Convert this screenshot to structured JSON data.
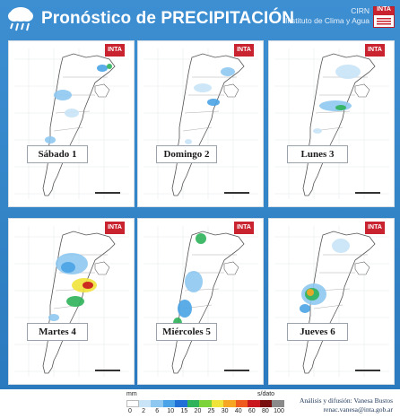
{
  "header": {
    "title_prefix": "Pronóstico de ",
    "title_main": "PRECIPITACIÓN",
    "org_line1": "CIRN",
    "org_line2": "Instituto de Clima y Agua",
    "logo_text": "INTA",
    "icon": "rain-cloud-icon"
  },
  "panels": [
    {
      "day": "Sábado 1",
      "logo": true
    },
    {
      "day": "Domingo 2",
      "logo": true
    },
    {
      "day": "Lunes 3",
      "logo": true
    },
    {
      "day": "Martes 4",
      "logo": true
    },
    {
      "day": "Miércoles 5",
      "logo": true
    },
    {
      "day": "Jueves 6",
      "logo": true
    }
  ],
  "legend": {
    "unit": "mm",
    "no_data": "s/dato",
    "ticks": [
      "0",
      "2",
      "6",
      "10",
      "15",
      "20",
      "25",
      "30",
      "40",
      "60",
      "80",
      "100"
    ],
    "colors": [
      "#ffffff",
      "#c9e4f7",
      "#8ec8f0",
      "#4aa3e6",
      "#1f6fd6",
      "#2fb35a",
      "#7dd33a",
      "#f0e33a",
      "#f6a623",
      "#ef5b1f",
      "#c9171d",
      "#7a0f10",
      "#8a8a8a"
    ]
  },
  "credits": {
    "line1": "Análisis y difusión: Vanesa Bustos",
    "line2": "renac.vanesa@inta.gob.ar"
  },
  "colors": {
    "background": "#2f7fc4",
    "accent": "#c8232f"
  }
}
